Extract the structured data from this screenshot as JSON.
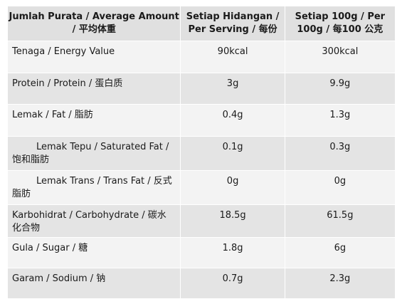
{
  "header": {
    "col1": "Jumlah Purata / Average Amount / 平均体重",
    "col2": "Setiap Hidangan / Per Serving / 每份",
    "col3": "Setiap 100g / Per 100g / 每100 公克"
  },
  "rows": [
    {
      "label": "Tenaga / Energy Value",
      "per_serving": "90kcal",
      "per_100g": "300kcal"
    },
    {
      "label": "Protein / Protein / 蛋白质",
      "per_serving": "3g",
      "per_100g": "9.9g"
    },
    {
      "label": "Lemak / Fat / 脂肪",
      "per_serving": "0.4g",
      "per_100g": "1.3g"
    },
    {
      "label": "Lemak Tepu / Saturated Fat / 饱和脂肪",
      "per_serving": "0.1g",
      "per_100g": "0.3g"
    },
    {
      "label": "Lemak Trans / Trans Fat / 反式脂肪",
      "per_serving": "0g",
      "per_100g": "0g"
    },
    {
      "label": "Karbohidrat / Carbohydrate / 碳水化合物",
      "per_serving": "18.5g",
      "per_100g": "61.5g"
    },
    {
      "label": "Gula / Sugar / 糖",
      "per_serving": "1.8g",
      "per_100g": "6g"
    },
    {
      "label": "Garam / Sodium / 钠",
      "per_serving": "0.7g",
      "per_100g": "2.3g"
    }
  ]
}
